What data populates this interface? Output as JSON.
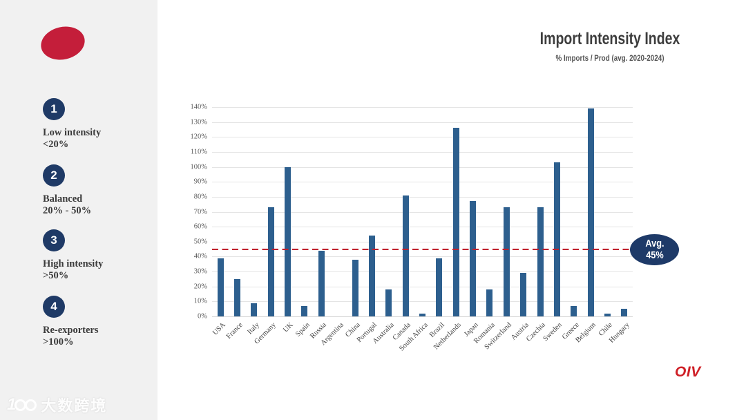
{
  "sidebar": {
    "items": [
      {
        "number": "1",
        "label": "Low intensity",
        "range": "<20%"
      },
      {
        "number": "2",
        "label": "Balanced",
        "range": "20% - 50%"
      },
      {
        "number": "3",
        "label": "High intensity",
        "range": ">50%"
      },
      {
        "number": "4",
        "label": "Re-exporters",
        "range": ">100%"
      }
    ],
    "watermark": "大数跨境"
  },
  "header": {
    "title": "Import Intensity Index",
    "subtitle": "% Imports / Prod (avg. 2020-2024)"
  },
  "footer": {
    "logo": "OIV"
  },
  "colors": {
    "bar": "#2d5f8e",
    "navy": "#1f3a66",
    "badge": "#1e3a68",
    "red_ellipse": "#c41e3a",
    "avg_line": "#c0202c",
    "oiv_red": "#cf2027",
    "sidebar_bg": "#f1f1f1"
  },
  "chart_data": {
    "type": "bar",
    "title": "Import Intensity Index",
    "subtitle": "% Imports / Prod (avg. 2020-2024)",
    "categories": [
      "USA",
      "France",
      "Italy",
      "Germany",
      "UK",
      "Spain",
      "Russia",
      "Argentina",
      "China",
      "Portugal",
      "Australia",
      "Canada",
      "South Africa",
      "Brazil",
      "Netherlands",
      "Japan",
      "Romania",
      "Switzerland",
      "Austria",
      "Czechia",
      "Sweden",
      "Greece",
      "Belgium",
      "Chile",
      "Hungary"
    ],
    "values": [
      39,
      25,
      9,
      73,
      100,
      7,
      44,
      0,
      38,
      54,
      18,
      81,
      2,
      39,
      126,
      77,
      18,
      73,
      29,
      73,
      103,
      7,
      139,
      2,
      5
    ],
    "xlabel": "",
    "ylabel": "% Imports / Prod",
    "ylim": [
      0,
      140
    ],
    "ytick_step": 10,
    "ytick_labels": [
      "0%",
      "10%",
      "20%",
      "30%",
      "40%",
      "50%",
      "60%",
      "70%",
      "80%",
      "90%",
      "100%",
      "110%",
      "120%",
      "130%",
      "140%"
    ],
    "grid": true,
    "legend_position": "none",
    "avg_line": {
      "value": 45,
      "label_line1": "Avg.",
      "label_line2": "45%",
      "color": "#c0202c"
    }
  }
}
